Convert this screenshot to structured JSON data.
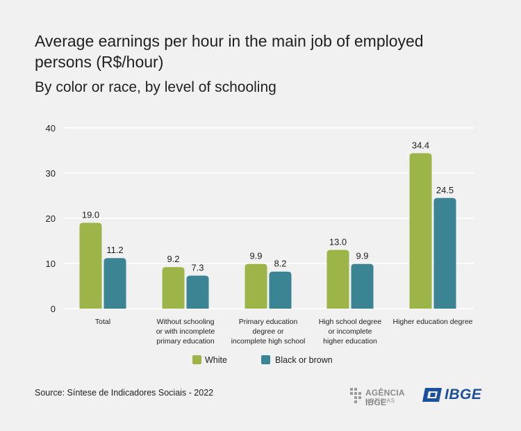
{
  "header": {
    "title": "Average earnings per hour in the main job of employed persons (R$/hour)",
    "subtitle": "By color or race, by level of schooling"
  },
  "chart_data": {
    "type": "bar",
    "categories": [
      [
        "Total"
      ],
      [
        "Without schooling",
        "or with incomplete",
        "primary education"
      ],
      [
        "Primary education",
        "degree or",
        "incomplete high school"
      ],
      [
        "High school degree",
        "or incomplete",
        "higher education"
      ],
      [
        "Higher education degree"
      ]
    ],
    "series": [
      {
        "name": "White",
        "color": "#9db548",
        "values": [
          19.0,
          9.2,
          9.9,
          13.0,
          34.4
        ]
      },
      {
        "name": "Black or brown",
        "color": "#3b8494",
        "values": [
          11.2,
          7.3,
          8.2,
          9.9,
          24.5
        ]
      }
    ],
    "ylim": [
      0,
      40
    ],
    "yticks": [
      0,
      10,
      20,
      30,
      40
    ],
    "grid": true,
    "legend_position": "bottom-center"
  },
  "footer": {
    "source": "Source: Síntese de Indicadores Sociais - 2022",
    "agencia_name": "AGÊNCIA IBGE",
    "agencia_sub": "NOTÍCIAS",
    "ibge_logo": "IBGE"
  }
}
